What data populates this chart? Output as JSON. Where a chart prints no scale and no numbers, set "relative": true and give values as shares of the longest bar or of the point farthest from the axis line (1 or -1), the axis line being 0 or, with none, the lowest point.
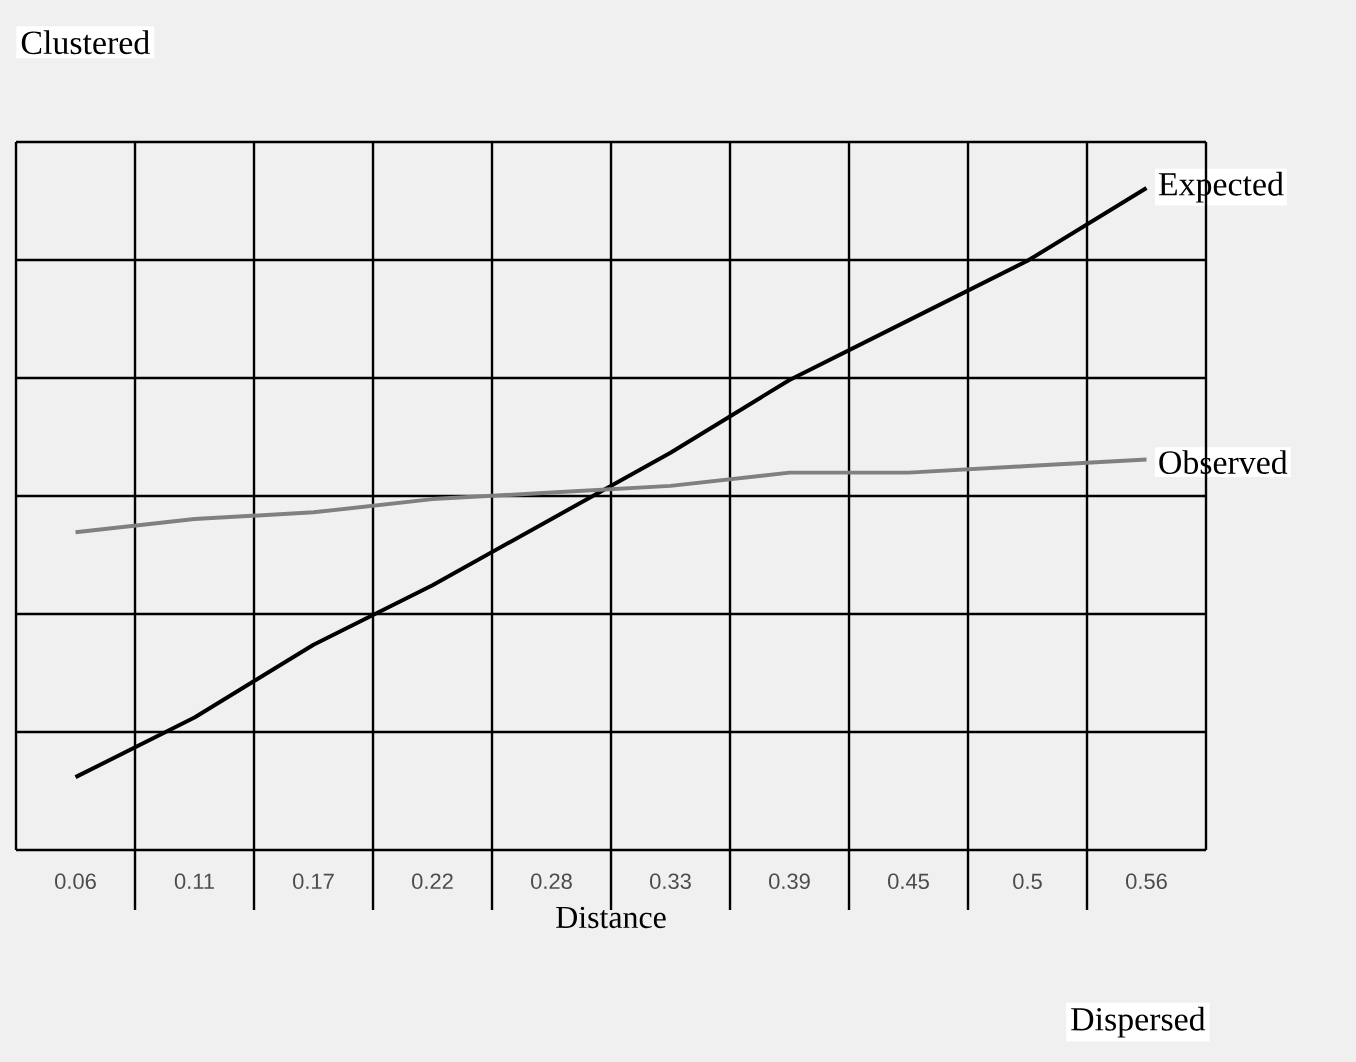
{
  "chart_data": {
    "type": "line",
    "xlabel": "Distance",
    "categories": [
      "0.06",
      "0.11",
      "0.17",
      "0.22",
      "0.28",
      "0.33",
      "0.39",
      "0.45",
      "0.5",
      "0.56"
    ],
    "relative": true,
    "grid": true,
    "marker": "none",
    "line_style": "solid",
    "series": [
      {
        "name": "Expected",
        "color": "#000000",
        "values": [
          0.11,
          0.2,
          0.31,
          0.4,
          0.5,
          0.6,
          0.71,
          0.8,
          0.89,
          1.0
        ]
      },
      {
        "name": "Observed",
        "color": "#808080",
        "values": [
          0.48,
          0.5,
          0.51,
          0.53,
          0.54,
          0.55,
          0.57,
          0.57,
          0.58,
          0.59
        ]
      }
    ],
    "annotations": [
      "Clustered",
      "Dispersed"
    ]
  }
}
